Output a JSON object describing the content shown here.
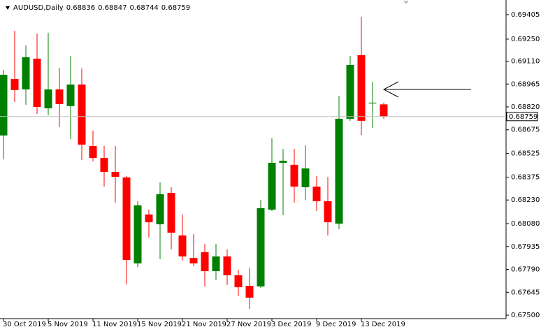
{
  "chart_data": {
    "type": "candlestick",
    "title": "AUDUSD,Daily",
    "categories": [
      "30 Oct 2019",
      null,
      null,
      null,
      "5 Nov 2019",
      null,
      null,
      null,
      "11 Nov 2019",
      null,
      null,
      null,
      "15 Nov 2019",
      null,
      null,
      null,
      "21 Nov 2019",
      null,
      null,
      null,
      "27 Nov 2019",
      null,
      null,
      null,
      "3 Dec 2019",
      null,
      null,
      null,
      "9 Dec 2019",
      null,
      null,
      null,
      "13 Dec 2019",
      null,
      null
    ],
    "open": [
      0.68639,
      0.68997,
      0.68931,
      0.69126,
      0.68811,
      0.68931,
      0.68825,
      0.68962,
      0.68572,
      0.68497,
      0.68408,
      0.68373,
      0.67828,
      0.68138,
      0.68076,
      0.68275,
      0.68005,
      0.67863,
      0.67899,
      0.67779,
      0.67872,
      0.67753,
      0.67686,
      0.67682,
      0.68169,
      0.68466,
      0.68453,
      0.68311,
      0.68315,
      0.68222,
      0.6808,
      0.68745,
      0.69148,
      0.68842,
      0.68836
    ],
    "high": [
      0.69055,
      0.69303,
      0.6921,
      0.69285,
      0.6929,
      0.69068,
      0.69144,
      0.69064,
      0.6867,
      0.68572,
      0.68572,
      0.68382,
      0.68222,
      0.68169,
      0.68342,
      0.68311,
      0.68138,
      0.68014,
      0.67952,
      0.67952,
      0.67917,
      0.67788,
      0.67801,
      0.68231,
      0.68621,
      0.68554,
      0.68554,
      0.68577,
      0.68382,
      0.68377,
      0.68891,
      0.69144,
      0.69392,
      0.6898,
      0.68847
    ],
    "low": [
      0.68488,
      0.68851,
      0.68834,
      0.68776,
      0.68767,
      0.68692,
      0.68617,
      0.68484,
      0.68475,
      0.68315,
      0.68213,
      0.67695,
      0.67806,
      0.67992,
      0.67855,
      0.67917,
      0.67846,
      0.6781,
      0.67682,
      0.67722,
      0.67691,
      0.6762,
      0.6754,
      0.67673,
      0.6816,
      0.68134,
      0.68213,
      0.68231,
      0.6816,
      0.68005,
      0.68045,
      0.68732,
      0.68643,
      0.68687,
      0.68744
    ],
    "close": [
      0.69024,
      0.68927,
      0.69135,
      0.6882,
      0.68931,
      0.68838,
      0.68962,
      0.68581,
      0.68497,
      0.68408,
      0.68377,
      0.6785,
      0.68196,
      0.68089,
      0.68267,
      0.68023,
      0.67872,
      0.67828,
      0.67779,
      0.67872,
      0.67753,
      0.67677,
      0.67611,
      0.68178,
      0.68466,
      0.68479,
      0.68315,
      0.6843,
      0.68222,
      0.68089,
      0.68745,
      0.69086,
      0.68732,
      0.68847,
      0.68759
    ],
    "up_color": "#008000",
    "down_color": "#ff0000",
    "ylim": [
      0.67478,
      0.6948
    ],
    "yticks": [
      0.69405,
      {
        "value": 0.6925,
        "label": "0.69250"
      },
      {
        "value": 0.6911,
        "label": "0.69110"
      },
      0.68965,
      {
        "value": 0.6882,
        "label": "0.68820"
      },
      0.68675,
      0.68525,
      0.68375,
      {
        "value": 0.6823,
        "label": "0.68230"
      },
      {
        "value": 0.6808,
        "label": "0.68080"
      },
      0.67935,
      {
        "value": 0.6779,
        "label": "0.67790"
      },
      0.67645,
      {
        "value": 0.675,
        "label": "0.67500"
      }
    ],
    "grid": false
  }
}
